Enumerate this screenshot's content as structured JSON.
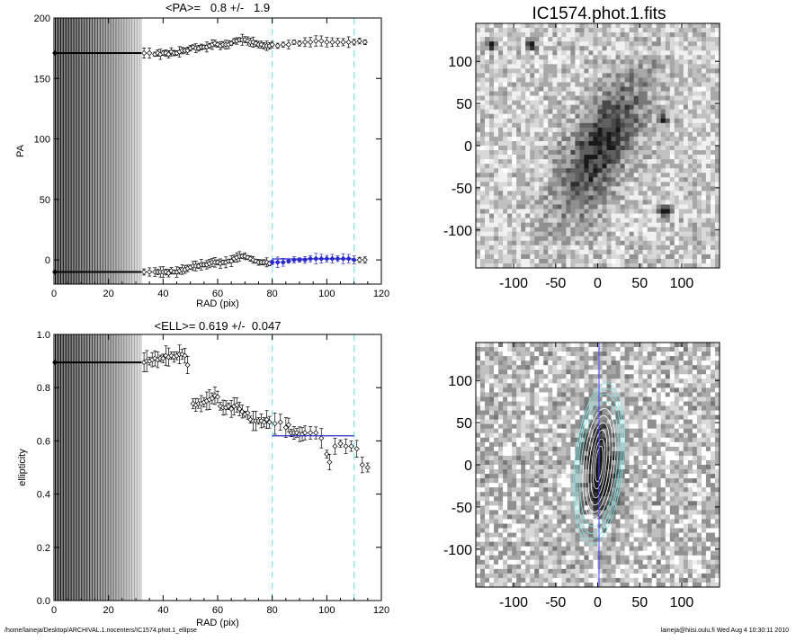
{
  "chart_data": [
    {
      "id": "pa",
      "type": "scatter",
      "title": "<PA>=   0.8 +/-   1.9",
      "xlabel": "RAD (pix)",
      "ylabel": "PA",
      "xlim": [
        0,
        120
      ],
      "ylim": [
        -20,
        200
      ],
      "xticks": [
        0,
        20,
        40,
        60,
        80,
        100,
        120
      ],
      "yticks": [
        0,
        50,
        100,
        150,
        200
      ],
      "vlines": [
        80,
        110
      ],
      "fit": {
        "x0": 80,
        "x1": 110,
        "y": 0.8
      },
      "series": [
        {
          "points": [
            [
              33,
              171
            ],
            [
              35,
              171
            ],
            [
              37,
              170
            ],
            [
              38,
              171
            ],
            [
              39,
              170
            ],
            [
              40,
              171
            ],
            [
              41,
              171
            ],
            [
              42,
              170
            ],
            [
              43,
              172
            ],
            [
              44,
              171
            ],
            [
              45,
              171
            ],
            [
              46,
              172
            ],
            [
              47,
              173
            ],
            [
              48,
              173
            ],
            [
              49,
              173
            ],
            [
              50,
              175
            ],
            [
              51,
              176
            ],
            [
              52,
              175
            ],
            [
              53,
              175
            ],
            [
              54,
              176
            ],
            [
              55,
              176
            ],
            [
              56,
              176
            ],
            [
              57,
              177
            ],
            [
              58,
              178
            ],
            [
              59,
              179
            ],
            [
              60,
              178
            ],
            [
              61,
              177
            ],
            [
              62,
              178
            ],
            [
              63,
              178
            ],
            [
              64,
              178
            ],
            [
              65,
              179
            ],
            [
              66,
              181
            ],
            [
              67,
              181
            ],
            [
              68,
              182
            ],
            [
              69,
              182
            ],
            [
              70,
              182
            ],
            [
              71,
              181
            ],
            [
              72,
              180
            ],
            [
              73,
              180
            ],
            [
              74,
              179
            ],
            [
              75,
              178
            ],
            [
              76,
              178
            ],
            [
              77,
              177
            ],
            [
              78,
              177
            ],
            [
              79,
              177
            ],
            [
              80,
              178
            ],
            [
              82,
              177
            ],
            [
              84,
              178
            ],
            [
              86,
              178
            ],
            [
              88,
              180
            ],
            [
              90,
              179
            ],
            [
              92,
              180
            ],
            [
              94,
              180
            ],
            [
              96,
              181
            ],
            [
              98,
              181
            ],
            [
              100,
              180
            ],
            [
              102,
              180
            ],
            [
              104,
              180
            ],
            [
              106,
              180
            ],
            [
              108,
              180
            ],
            [
              110,
              180
            ],
            [
              112,
              181
            ],
            [
              114,
              180
            ]
          ]
        },
        {
          "points": [
            [
              33,
              -10
            ],
            [
              35,
              -10
            ],
            [
              37,
              -10
            ],
            [
              38,
              -10
            ],
            [
              39,
              -10
            ],
            [
              40,
              -10
            ],
            [
              41,
              -10
            ],
            [
              42,
              -11
            ],
            [
              43,
              -9
            ],
            [
              44,
              -10
            ],
            [
              45,
              -10
            ],
            [
              46,
              -9
            ],
            [
              47,
              -8
            ],
            [
              48,
              -8
            ],
            [
              49,
              -7
            ],
            [
              50,
              -6
            ],
            [
              51,
              -5
            ],
            [
              52,
              -5
            ],
            [
              53,
              -5
            ],
            [
              54,
              -4
            ],
            [
              55,
              -4
            ],
            [
              56,
              -4
            ],
            [
              57,
              -3
            ],
            [
              58,
              -2
            ],
            [
              59,
              -2
            ],
            [
              60,
              -2
            ],
            [
              61,
              -3
            ],
            [
              62,
              -2
            ],
            [
              63,
              -2
            ],
            [
              64,
              -1
            ],
            [
              65,
              -1
            ],
            [
              66,
              1
            ],
            [
              67,
              2
            ],
            [
              68,
              3
            ],
            [
              69,
              3
            ],
            [
              70,
              3
            ],
            [
              71,
              2
            ],
            [
              72,
              1
            ],
            [
              73,
              0
            ],
            [
              74,
              -1
            ],
            [
              75,
              -2
            ],
            [
              76,
              -2
            ],
            [
              77,
              -2
            ],
            [
              78,
              -2
            ],
            [
              79,
              -3
            ],
            [
              80,
              -2
            ],
            [
              82,
              -2
            ],
            [
              84,
              -2
            ],
            [
              86,
              -1
            ],
            [
              88,
              0
            ],
            [
              90,
              0
            ],
            [
              92,
              0
            ],
            [
              94,
              1
            ],
            [
              96,
              1
            ],
            [
              98,
              1
            ],
            [
              100,
              1
            ],
            [
              102,
              1
            ],
            [
              104,
              1
            ],
            [
              106,
              1
            ],
            [
              108,
              1
            ],
            [
              110,
              0
            ],
            [
              112,
              0
            ],
            [
              114,
              0
            ]
          ]
        }
      ]
    },
    {
      "id": "ell",
      "type": "scatter",
      "title": "<ELL>= 0.619 +/-  0.047",
      "xlabel": "RAD (pix)",
      "ylabel": "ellipticity",
      "xlim": [
        0,
        120
      ],
      "ylim": [
        0.0,
        1.0
      ],
      "xticks": [
        0,
        20,
        40,
        60,
        80,
        100,
        120
      ],
      "yticks": [
        0.0,
        0.2,
        0.4,
        0.6,
        0.8,
        1.0
      ],
      "ytick_labels": [
        "0.0",
        "0.2",
        "0.4",
        "0.6",
        "0.8",
        "1.0"
      ],
      "vlines": [
        80,
        110
      ],
      "fit": {
        "x0": 80,
        "x1": 110,
        "y": 0.619
      },
      "points": [
        [
          33,
          0.895
        ],
        [
          34,
          0.9
        ],
        [
          35,
          0.9
        ],
        [
          36,
          0.905
        ],
        [
          37,
          0.91
        ],
        [
          38,
          0.905
        ],
        [
          39,
          0.91
        ],
        [
          40,
          0.91
        ],
        [
          41,
          0.92
        ],
        [
          42,
          0.915
        ],
        [
          43,
          0.92
        ],
        [
          44,
          0.915
        ],
        [
          45,
          0.92
        ],
        [
          46,
          0.925
        ],
        [
          47,
          0.925
        ],
        [
          48,
          0.92
        ],
        [
          49,
          0.885
        ],
        [
          51,
          0.74
        ],
        [
          52,
          0.735
        ],
        [
          53,
          0.74
        ],
        [
          54,
          0.74
        ],
        [
          55,
          0.745
        ],
        [
          56,
          0.75
        ],
        [
          57,
          0.755
        ],
        [
          58,
          0.76
        ],
        [
          59,
          0.77
        ],
        [
          60,
          0.765
        ],
        [
          61,
          0.73
        ],
        [
          62,
          0.725
        ],
        [
          63,
          0.725
        ],
        [
          64,
          0.73
        ],
        [
          65,
          0.72
        ],
        [
          66,
          0.73
        ],
        [
          67,
          0.735
        ],
        [
          68,
          0.72
        ],
        [
          69,
          0.71
        ],
        [
          70,
          0.7
        ],
        [
          71,
          0.705
        ],
        [
          72,
          0.68
        ],
        [
          73,
          0.675
        ],
        [
          74,
          0.675
        ],
        [
          75,
          0.675
        ],
        [
          76,
          0.675
        ],
        [
          77,
          0.67
        ],
        [
          78,
          0.68
        ],
        [
          79,
          0.67
        ],
        [
          81,
          0.665
        ],
        [
          83,
          0.67
        ],
        [
          85,
          0.65
        ],
        [
          86,
          0.66
        ],
        [
          87,
          0.63
        ],
        [
          88,
          0.63
        ],
        [
          89,
          0.63
        ],
        [
          90,
          0.625
        ],
        [
          91,
          0.625
        ],
        [
          92,
          0.63
        ],
        [
          94,
          0.63
        ],
        [
          96,
          0.63
        ],
        [
          98,
          0.61
        ],
        [
          100,
          0.55
        ],
        [
          101,
          0.52
        ],
        [
          103,
          0.58
        ],
        [
          105,
          0.59
        ],
        [
          107,
          0.58
        ],
        [
          109,
          0.58
        ],
        [
          111,
          0.57
        ],
        [
          113,
          0.51
        ],
        [
          115,
          0.5
        ]
      ]
    }
  ],
  "images": {
    "title": "IC1574.phot.1.fits",
    "xticks": [
      "-100",
      "-50",
      "0",
      "50",
      "100"
    ],
    "yticks": [
      "100",
      "50",
      "0",
      "-50",
      "-100"
    ]
  },
  "footer": {
    "left": "/home/laineja/Desktop/ARCHIVAL.1.nocenters/IC1574.phot.1_ellipse",
    "right": "laineja@hiisi.oulu.fi  Wed Aug  4 10:30:11 2010"
  }
}
